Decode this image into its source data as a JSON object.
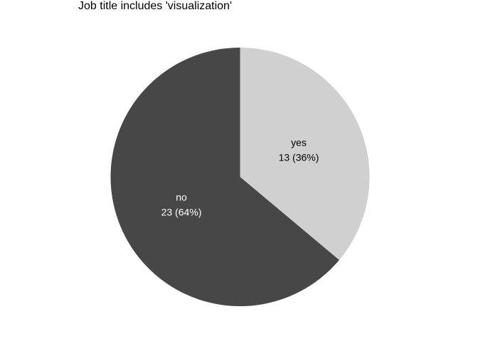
{
  "chart_data": {
    "type": "pie",
    "title": "Job title includes 'visualization'",
    "slices": [
      {
        "label": "yes",
        "value": 13,
        "percent": 36,
        "display": "13 (36%)",
        "color": "#d0d0d0",
        "text_color": "#000000"
      },
      {
        "label": "no",
        "value": 23,
        "percent": 64,
        "display": "23 (64%)",
        "color": "#474747",
        "text_color": "#ffffff"
      }
    ],
    "start_angle": "12 o'clock",
    "direction": "clockwise",
    "legend": "none"
  }
}
